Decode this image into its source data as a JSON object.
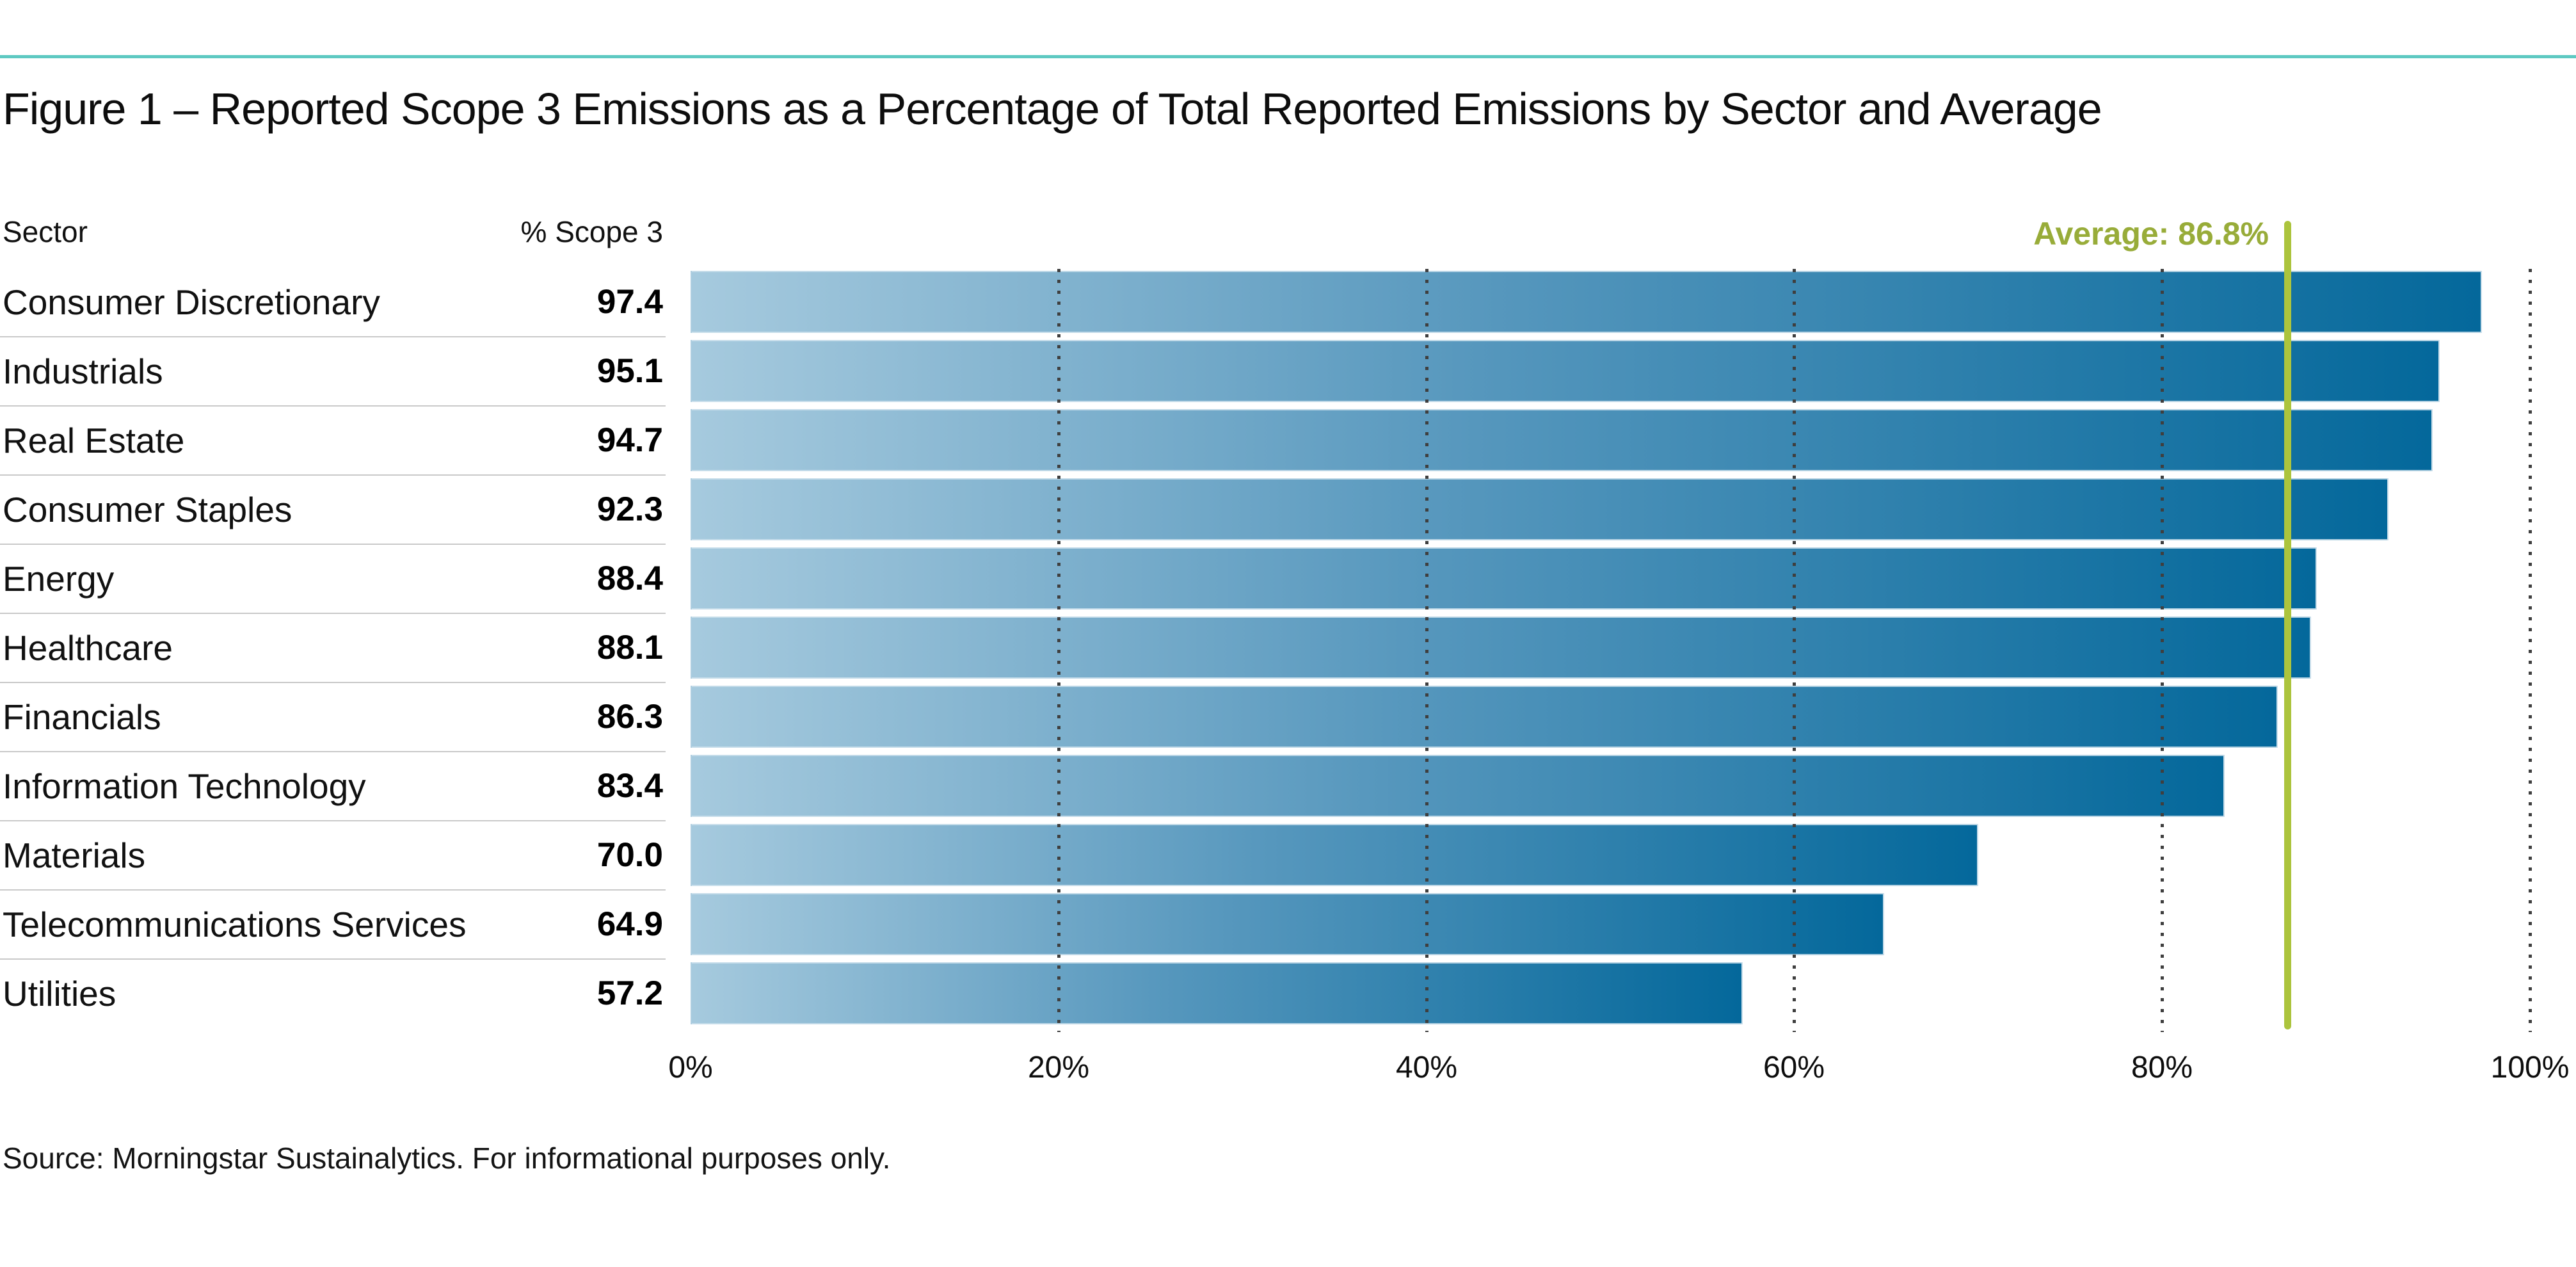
{
  "title": "Figure 1 – Reported Scope 3 Emissions as a Percentage of Total Reported Emissions by Sector and Average",
  "table": {
    "sector_header": "Sector",
    "value_header": "% Scope 3"
  },
  "chart_data": {
    "type": "bar",
    "orientation": "horizontal",
    "categories": [
      "Consumer Discretionary",
      "Industrials",
      "Real Estate",
      "Consumer Staples",
      "Energy",
      "Healthcare",
      "Financials",
      "Information Technology",
      "Materials",
      "Telecommunications Services",
      "Utilities"
    ],
    "values": [
      97.4,
      95.1,
      94.7,
      92.3,
      88.4,
      88.1,
      86.3,
      83.4,
      70.0,
      64.9,
      57.2
    ],
    "value_labels": [
      "97.4",
      "95.1",
      "94.7",
      "92.3",
      "88.4",
      "88.1",
      "86.3",
      "83.4",
      "70.0",
      "64.9",
      "57.2"
    ],
    "average": {
      "label": "Average: 86.8%",
      "value": 86.8
    },
    "x_ticks": [
      "0%",
      "20%",
      "40%",
      "60%",
      "80%",
      "100%"
    ],
    "xlim": [
      0,
      100
    ],
    "grid": "dotted-vertical",
    "legend_position": "none",
    "ylabel": "Sector",
    "xlabel": "% Scope 3"
  },
  "colors": {
    "top_rule": "#5EC9C2",
    "bar_gradient_start": "#A6CADE",
    "bar_gradient_end": "#04689B",
    "average_line": "#ACC43D",
    "average_text": "#98AC39",
    "separator": "#c9c9c9",
    "grid_dot": "#3f3f3f"
  },
  "source": "Source: Morningstar Sustainalytics. For informational purposes only."
}
